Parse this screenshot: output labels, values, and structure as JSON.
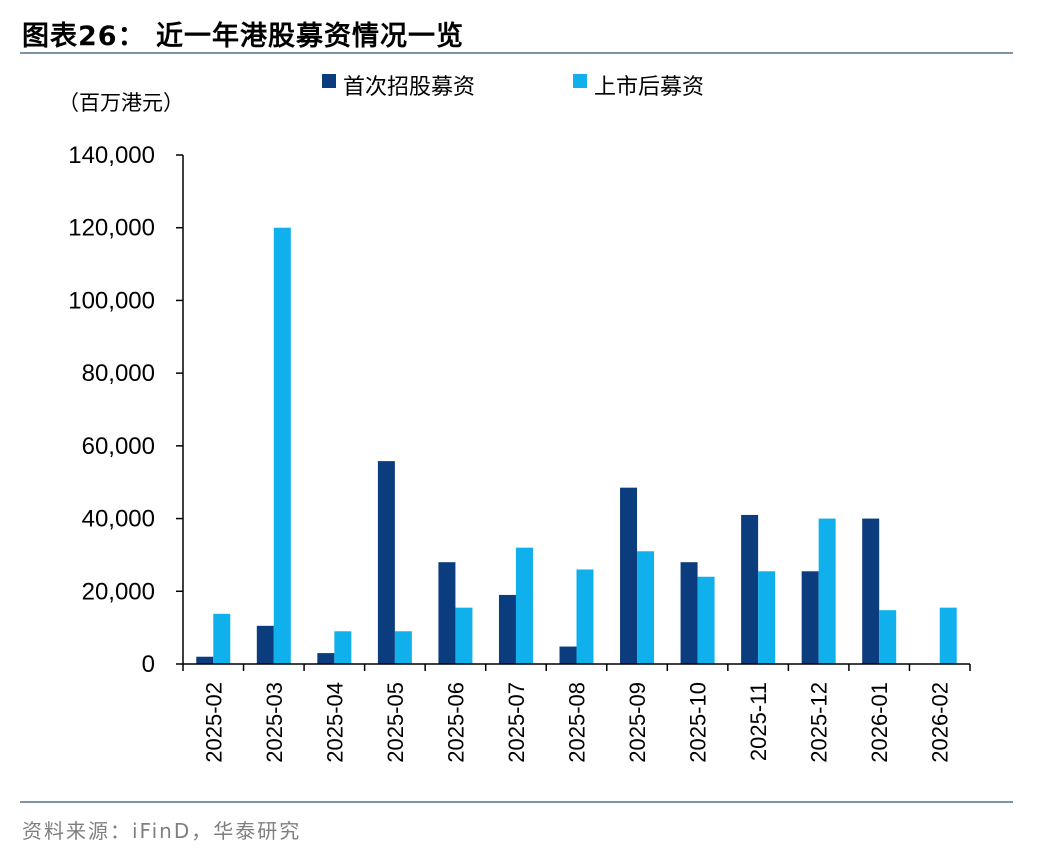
{
  "figure": {
    "title": "图表26：  近一年港股募资情况一览",
    "source": "资料来源：iFinD，华泰研究"
  },
  "colors": {
    "series_ipo": "#0b3c7d",
    "series_follow_on": "#10b0ec",
    "axis": "#000000",
    "rule": "#7f93a6"
  },
  "chart_data": {
    "type": "bar",
    "unit_label": "（百万港元）",
    "categories": [
      "2025-02",
      "2025-03",
      "2025-04",
      "2025-05",
      "2025-06",
      "2025-07",
      "2025-08",
      "2025-09",
      "2025-10",
      "2025-11",
      "2025-12",
      "2026-01",
      "2026-02"
    ],
    "series": [
      {
        "name": "首次招股募资",
        "values": [
          2000,
          10500,
          3000,
          55800,
          28000,
          19000,
          4800,
          48500,
          28000,
          41000,
          25500,
          40000,
          0
        ]
      },
      {
        "name": "上市后募资",
        "values": [
          13800,
          120000,
          9000,
          9000,
          15500,
          32000,
          26000,
          31000,
          24000,
          25500,
          40000,
          14800,
          15500
        ]
      }
    ],
    "ylim": [
      0,
      140000
    ],
    "yticks": [
      0,
      20000,
      40000,
      60000,
      80000,
      100000,
      120000,
      140000
    ],
    "ytick_labels": [
      "0",
      "20,000",
      "40,000",
      "60,000",
      "80,000",
      "100,000",
      "120,000",
      "140,000"
    ],
    "legend_position": "top-center",
    "grid": false
  }
}
